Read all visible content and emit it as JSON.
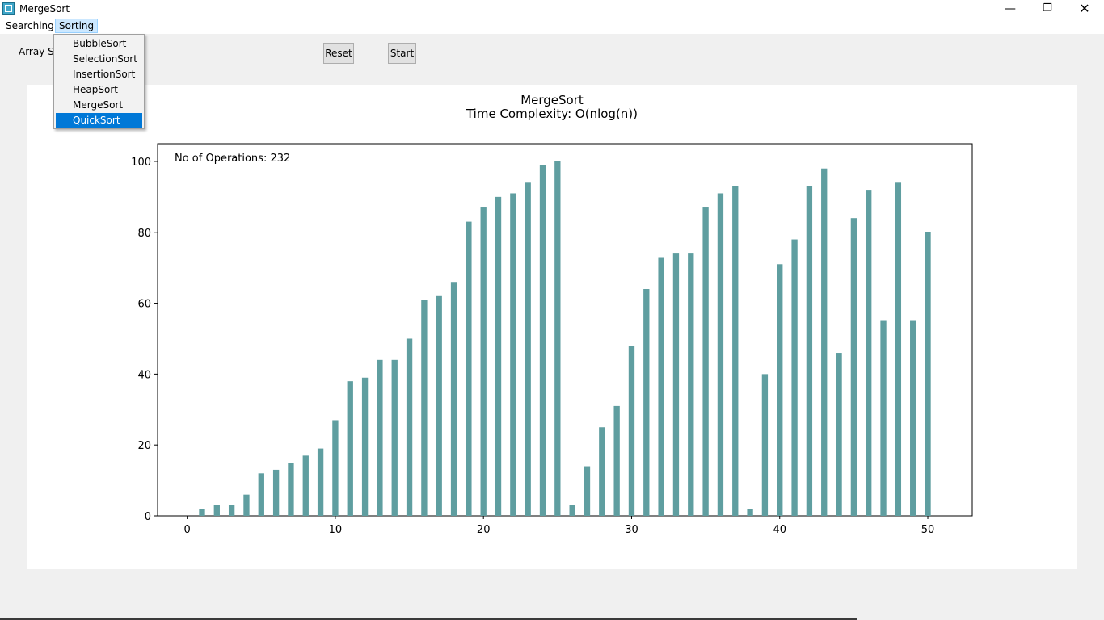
{
  "window": {
    "title": "MergeSort",
    "min_glyph": "—",
    "max_glyph": "❐",
    "close_glyph": "✕",
    "icon": "app-icon"
  },
  "menu": {
    "searching": "Searching",
    "sorting": "Sorting",
    "sorting_items": [
      "BubbleSort",
      "SelectionSort",
      "InsertionSort",
      "HeapSort",
      "MergeSort",
      "QuickSort"
    ],
    "highlighted_item": "QuickSort"
  },
  "controls": {
    "array_size_label": "Array Siz",
    "reset": "Reset",
    "start": "Start"
  },
  "chart_data": {
    "type": "bar",
    "title": "MergeSort",
    "subtitle": "Time Complexity: O(nlog(n))",
    "annotation": "No of Operations: 232",
    "bar_color": "#5f9ea0",
    "x": [
      0,
      1,
      2,
      3,
      4,
      5,
      6,
      7,
      8,
      9,
      10,
      11,
      12,
      13,
      14,
      15,
      16,
      17,
      18,
      19,
      20,
      21,
      22,
      23,
      24,
      25,
      26,
      27,
      28,
      29,
      30,
      31,
      32,
      33,
      34,
      35,
      36,
      37,
      38,
      39,
      40,
      41,
      42,
      43,
      44,
      45,
      46,
      47,
      48,
      49,
      50
    ],
    "values": [
      0,
      2,
      3,
      3,
      6,
      12,
      13,
      15,
      17,
      19,
      27,
      38,
      39,
      44,
      44,
      50,
      61,
      62,
      66,
      83,
      87,
      90,
      91,
      94,
      99,
      100,
      3,
      14,
      25,
      31,
      48,
      64,
      73,
      74,
      74,
      87,
      91,
      93,
      2,
      40,
      71,
      78,
      93,
      98,
      46,
      84,
      92,
      55,
      94,
      55,
      80
    ],
    "xlim": [
      -2,
      53
    ],
    "ylim": [
      0,
      105
    ],
    "xticks": [
      0,
      10,
      20,
      30,
      40,
      50
    ],
    "yticks": [
      0,
      20,
      40,
      60,
      80,
      100
    ],
    "xlabel": "",
    "ylabel": "",
    "grid": false
  }
}
